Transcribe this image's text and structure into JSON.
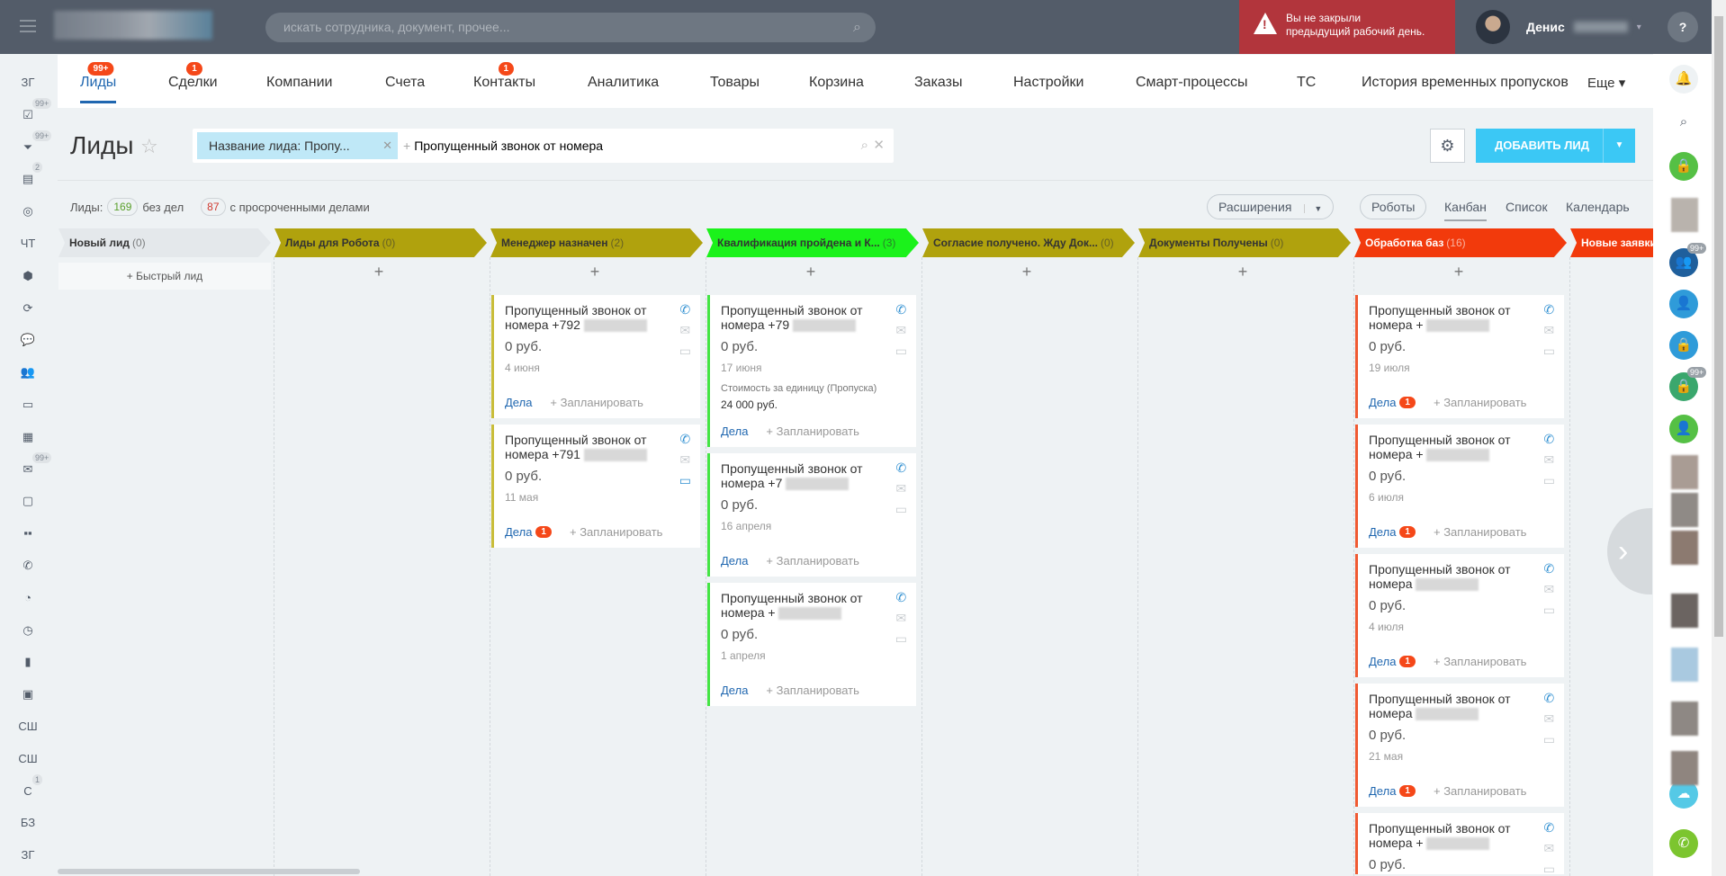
{
  "topbar": {
    "search_placeholder": "искать сотрудника, документ, прочее...",
    "alert_line1": "Вы не закрыли",
    "alert_line2": "предыдущий рабочий день.",
    "user_name": "Денис",
    "help_label": "?"
  },
  "left_nav": [
    {
      "label": "ЗГ",
      "icon": ""
    },
    {
      "label": "",
      "icon": "☑",
      "badge": "99+"
    },
    {
      "label": "",
      "icon": "⏷",
      "badge": "99+",
      "active": true
    },
    {
      "label": "",
      "icon": "▤",
      "badge": "2"
    },
    {
      "label": "",
      "icon": "◎"
    },
    {
      "label": "ЧТ",
      "icon": ""
    },
    {
      "label": "",
      "icon": "⬢"
    },
    {
      "label": "",
      "icon": "⟳"
    },
    {
      "label": "",
      "icon": "💬"
    },
    {
      "label": "",
      "icon": "👥"
    },
    {
      "label": "",
      "icon": "▭"
    },
    {
      "label": "",
      "icon": "▦"
    },
    {
      "label": "",
      "icon": "✉",
      "badge": "99+"
    },
    {
      "label": "",
      "icon": "▢"
    },
    {
      "label": "",
      "icon": "▪▪"
    },
    {
      "label": "",
      "icon": "✆"
    },
    {
      "label": "",
      "icon": "◔"
    },
    {
      "label": "",
      "icon": "◷"
    },
    {
      "label": "",
      "icon": "▮"
    },
    {
      "label": "",
      "icon": "▣"
    },
    {
      "label": "СШ",
      "icon": ""
    },
    {
      "label": "СШ",
      "icon": ""
    },
    {
      "label": "С",
      "icon": "",
      "badge": "1"
    },
    {
      "label": "БЗ",
      "icon": ""
    },
    {
      "label": "ЗГ",
      "icon": ""
    }
  ],
  "tabs": [
    {
      "label": "Лиды",
      "count": "99+",
      "active": true
    },
    {
      "label": "Сделки",
      "count": "1"
    },
    {
      "label": "Компании"
    },
    {
      "label": "Счета"
    },
    {
      "label": "Контакты",
      "count": "1"
    },
    {
      "label": "Аналитика"
    },
    {
      "label": "Товары"
    },
    {
      "label": "Корзина"
    },
    {
      "label": "Заказы"
    },
    {
      "label": "Настройки"
    },
    {
      "label": "Смарт-процессы"
    },
    {
      "label": "ТС"
    },
    {
      "label": "История временных пропусков"
    },
    {
      "label": "Еще ▾"
    }
  ],
  "page": {
    "title": "Лиды",
    "filter_chip": "Название лида: Пропу...",
    "filter_text": "Пропущенный звонок от номера",
    "add_button": "ДОБАВИТЬ ЛИД",
    "counters": {
      "leads_label": "Лиды:",
      "no_tasks_count": "169",
      "no_tasks_label": "без дел",
      "overdue_count": "87",
      "overdue_label": "с просроченными делами"
    },
    "view": {
      "extensions": "Расширения",
      "robots": "Роботы",
      "kanban": "Канбан",
      "list": "Список",
      "calendar": "Календарь",
      "active": "Канбан"
    }
  },
  "colors": {
    "accent": "#2067b0",
    "badge": "#f54819",
    "add_button": "#3bc8f5",
    "alert": "#b2353c"
  },
  "columns": [
    {
      "title": "Новый лид",
      "count": "(0)",
      "color": "#e4e8eb",
      "text": "#333",
      "quick": "+  Быстрый лид",
      "cards": []
    },
    {
      "title": "Лиды для Робота",
      "count": "(0)",
      "color": "#b0a20d",
      "text": "#333",
      "cards": []
    },
    {
      "title": "Менеджер назначен",
      "count": "(2)",
      "color": "#b0a20d",
      "text": "#333",
      "border": "#c9bd3a",
      "cards": [
        {
          "title": "Пропущенный звонок от номера +792",
          "price": "0 руб.",
          "date": "4 июня",
          "deals": "Дела",
          "plan": "+ Запланировать"
        },
        {
          "title": "Пропущенный звонок от номера +791",
          "price": "0 руб.",
          "date": "11 мая",
          "deals": "Дела",
          "badge": "1",
          "plan": "+ Запланировать",
          "chat_active": true
        }
      ]
    },
    {
      "title": "Квалификация пройдена и К...",
      "count": "(3)",
      "color": "#1bf21b",
      "text": "#333",
      "border": "#44e444",
      "cards": [
        {
          "title": "Пропущенный звонок от номера +79",
          "price": "0 руб.",
          "date": "17 июня",
          "extra_label": "Стоимость за единицу (Пропуска)",
          "extra_value": "24 000 руб.",
          "deals": "Дела",
          "plan": "+ Запланировать"
        },
        {
          "title": "Пропущенный звонок от номера +7",
          "price": "0 руб.",
          "date": "16 апреля",
          "deals": "Дела",
          "plan": "+ Запланировать"
        },
        {
          "title": "Пропущенный звонок от номера +",
          "price": "0 руб.",
          "date": "1 апреля",
          "deals": "Дела",
          "plan": "+ Запланировать"
        }
      ]
    },
    {
      "title": "Согласие получено. Жду Док...",
      "count": "(0)",
      "color": "#b0a20d",
      "text": "#333",
      "cards": []
    },
    {
      "title": "Документы Получены",
      "count": "(0)",
      "color": "#b0a20d",
      "text": "#333",
      "cards": []
    },
    {
      "title": "Обработка баз",
      "count": "(16)",
      "color": "#f23a0c",
      "text": "#fff",
      "border": "#f05a32",
      "cards": [
        {
          "title": "Пропущенный звонок от номера +",
          "price": "0 руб.",
          "date": "19 июля",
          "deals": "Дела",
          "badge": "1",
          "plan": "+ Запланировать"
        },
        {
          "title": "Пропущенный звонок от номера +",
          "price": "0 руб.",
          "date": "6 июля",
          "deals": "Дела",
          "badge": "1",
          "plan": "+ Запланировать"
        },
        {
          "title": "Пропущенный звонок от номера",
          "price": "0 руб.",
          "date": "4 июля",
          "deals": "Дела",
          "badge": "1",
          "plan": "+ Запланировать"
        },
        {
          "title": "Пропущенный звонок от номера",
          "price": "0 руб.",
          "date": "21 мая",
          "deals": "Дела",
          "badge": "1",
          "plan": "+ Запланировать"
        },
        {
          "title": "Пропущенный звонок от номера +",
          "price": "0 руб.",
          "date": "",
          "deals": "",
          "plan": ""
        }
      ]
    },
    {
      "title": "Новые заявки",
      "count": "",
      "color": "#f23a0c",
      "text": "#fff",
      "cards": []
    }
  ],
  "right_nav": [
    {
      "icon": "bell-icon",
      "glyph": "🔔",
      "color": "#eef2f4",
      "fg": "#535c69"
    },
    {
      "icon": "search-icon",
      "glyph": "⌕",
      "color": "#fff",
      "fg": "#535c69"
    },
    {
      "icon": "lock-icon",
      "glyph": "🔒",
      "color": "#55c045"
    },
    {
      "icon": "group-chat-icon",
      "glyph": "👥",
      "color": "#1f5f9c",
      "badge": "99+"
    },
    {
      "icon": "user-icon",
      "glyph": "👤",
      "color": "#2f9bd9"
    },
    {
      "icon": "lock-icon",
      "glyph": "🔒",
      "color": "#2f9bd9"
    },
    {
      "icon": "lock-icon",
      "glyph": "🔒",
      "color": "#3aa76d",
      "badge": "99+"
    },
    {
      "icon": "user-icon",
      "glyph": "👤",
      "color": "#55c045"
    },
    {
      "icon": "cloud-phone-icon",
      "glyph": "☁",
      "color": "#55c9e6"
    },
    {
      "icon": "phone-icon",
      "glyph": "✆",
      "color": "#7cc52f"
    }
  ]
}
